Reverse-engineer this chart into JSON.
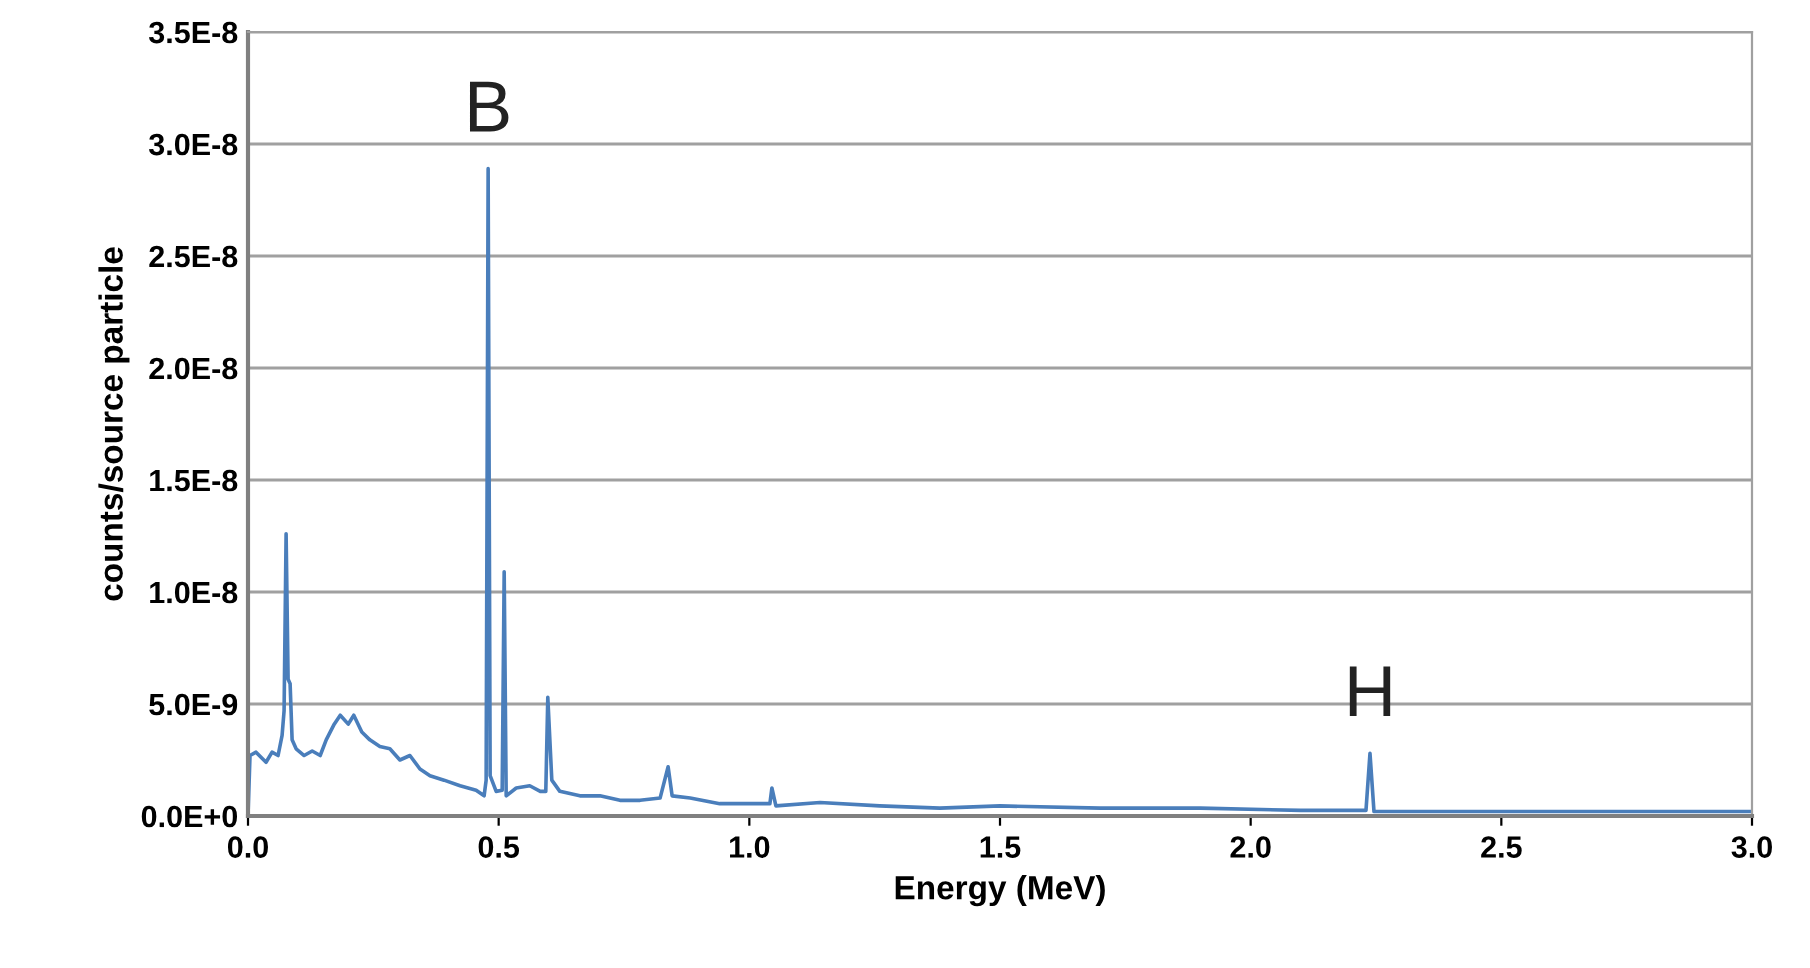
{
  "chart_data": {
    "type": "line",
    "xlabel": "Energy (MeV)",
    "ylabel": "counts/source particle",
    "series": [
      {
        "color": "#4a7ebb",
        "x": [
          0,
          0.004,
          0.016,
          0.036,
          0.048,
          0.06,
          0.068,
          0.072,
          0.076,
          0.08,
          0.084,
          0.088,
          0.096,
          0.112,
          0.128,
          0.144,
          0.156,
          0.172,
          0.184,
          0.2,
          0.211,
          0.227,
          0.243,
          0.263,
          0.283,
          0.303,
          0.323,
          0.343,
          0.363,
          0.391,
          0.423,
          0.455,
          0.471,
          0.475,
          0.479,
          0.483,
          0.495,
          0.507,
          0.511,
          0.515,
          0.535,
          0.562,
          0.583,
          0.594,
          0.598,
          0.606,
          0.622,
          0.662,
          0.702,
          0.742,
          0.782,
          0.822,
          0.838,
          0.846,
          0.882,
          0.941,
          1.041,
          1.045,
          1.053,
          1.141,
          1.26,
          1.38,
          1.5,
          1.7,
          1.9,
          2.1,
          2.23,
          2.238,
          2.246,
          2.377,
          2.537,
          2.697,
          2.856,
          3.0
        ],
        "values": [
          0,
          2.7e-09,
          2.85e-09,
          2.4e-09,
          2.85e-09,
          2.7e-09,
          3.6e-09,
          4.7e-09,
          1.26e-08,
          6.1e-09,
          5.9e-09,
          3.4e-09,
          3e-09,
          2.7e-09,
          2.9e-09,
          2.7e-09,
          3.4e-09,
          4.1e-09,
          4.5e-09,
          4.1e-09,
          4.5e-09,
          3.75e-09,
          3.4e-09,
          3.1e-09,
          3e-09,
          2.5e-09,
          2.7e-09,
          2.1e-09,
          1.8e-09,
          1.6e-09,
          1.35e-09,
          1.15e-09,
          9e-10,
          1.6e-09,
          2.89e-08,
          1.8e-09,
          1.1e-09,
          1.15e-09,
          1.09e-08,
          9e-10,
          1.25e-09,
          1.35e-09,
          1.1e-09,
          1.1e-09,
          5.3e-09,
          1.6e-09,
          1.1e-09,
          9e-10,
          9e-10,
          7e-10,
          7e-10,
          8e-10,
          2.2e-09,
          9e-10,
          8e-10,
          5.5e-10,
          5.5e-10,
          1.25e-09,
          4.5e-10,
          6e-10,
          4.5e-10,
          3.5e-10,
          4.5e-10,
          3.5e-10,
          3.5e-10,
          2.5e-10,
          2.5e-10,
          2.8e-09,
          2e-10,
          2e-10,
          2e-10,
          2e-10,
          2e-10,
          2e-10
        ]
      }
    ],
    "xlim": [
      0,
      3.0
    ],
    "xticks": [
      {
        "value": 0,
        "label": "0.0"
      },
      {
        "value": 0.5,
        "label": "0.5"
      },
      {
        "value": 1.0,
        "label": "1.0"
      },
      {
        "value": 1.5,
        "label": "1.5"
      },
      {
        "value": 2.0,
        "label": "2.0"
      },
      {
        "value": 2.5,
        "label": "2.5"
      },
      {
        "value": 3.0,
        "label": "3.0"
      }
    ],
    "ylim": [
      0,
      3.5e-08
    ],
    "yticks": [
      {
        "value": 0,
        "label": "0.0E+0"
      },
      {
        "value": 5e-09,
        "label": "5.0E-9"
      },
      {
        "value": 1e-08,
        "label": "1.0E-8"
      },
      {
        "value": 1.5e-08,
        "label": "1.5E-8"
      },
      {
        "value": 2e-08,
        "label": "2.0E-8"
      },
      {
        "value": 2.5e-08,
        "label": "2.5E-8"
      },
      {
        "value": 3e-08,
        "label": "3.0E-8"
      },
      {
        "value": 3.5e-08,
        "label": "3.5E-8"
      }
    ],
    "grid": "y",
    "marker": "none",
    "line_style": "solid",
    "annotations": [
      {
        "text": "B",
        "x": 0.479,
        "y": 2.89e-08
      },
      {
        "text": "H",
        "x": 2.238,
        "y": 2.8e-09
      }
    ]
  }
}
